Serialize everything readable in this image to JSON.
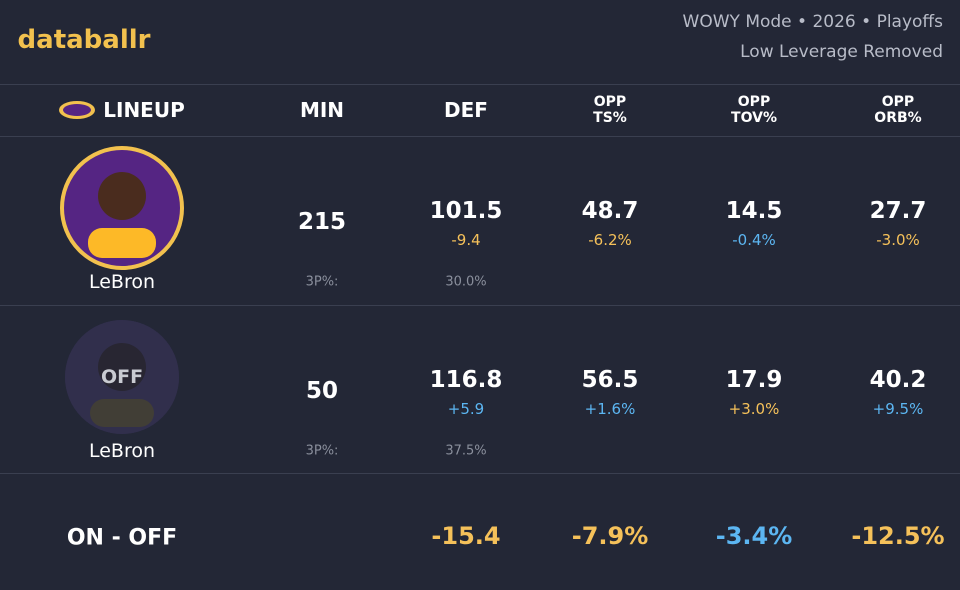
{
  "brand": "databallr",
  "header": {
    "line1": "WOWY Mode • 2026 • Playoffs",
    "line2": "Low Leverage Removed"
  },
  "columns": [
    {
      "top": "LINEUP"
    },
    {
      "top": "MIN"
    },
    {
      "top": "DEF"
    },
    {
      "top": "OPP",
      "bottom": "TS%"
    },
    {
      "top": "OPP",
      "bottom": "TOV%"
    },
    {
      "top": "OPP",
      "bottom": "ORB%"
    }
  ],
  "rows": [
    {
      "player": "LeBron",
      "min": "215",
      "def": "101.5",
      "def_delta": {
        "text": "-9.4",
        "color": "#f5c15a"
      },
      "ts": "48.7",
      "ts_delta": {
        "text": "-6.2%",
        "color": "#f5c15a"
      },
      "tov": "14.5",
      "tov_delta": {
        "text": "-0.4%",
        "color": "#5cb6f2"
      },
      "orb": "27.7",
      "orb_delta": {
        "text": "-3.0%",
        "color": "#f5c15a"
      },
      "tp_label": "3P%:",
      "tp_value": "30.0%"
    },
    {
      "player": "LeBron",
      "badge": "OFF",
      "min": "50",
      "def": "116.8",
      "def_delta": {
        "text": "+5.9",
        "color": "#5cb6f2"
      },
      "ts": "56.5",
      "ts_delta": {
        "text": "+1.6%",
        "color": "#5cb6f2"
      },
      "tov": "17.9",
      "tov_delta": {
        "text": "+3.0%",
        "color": "#f5c15a"
      },
      "orb": "40.2",
      "orb_delta": {
        "text": "+9.5%",
        "color": "#5cb6f2"
      },
      "tp_label": "3P%:",
      "tp_value": "37.5%"
    }
  ],
  "footer": {
    "label": "ON - OFF",
    "def": {
      "text": "-15.4",
      "color": "#f5c15a"
    },
    "ts": {
      "text": "-7.9%",
      "color": "#f5c15a"
    },
    "tov": {
      "text": "-3.4%",
      "color": "#5cb6f2"
    },
    "orb": {
      "text": "-12.5%",
      "color": "#f5c15a"
    }
  }
}
